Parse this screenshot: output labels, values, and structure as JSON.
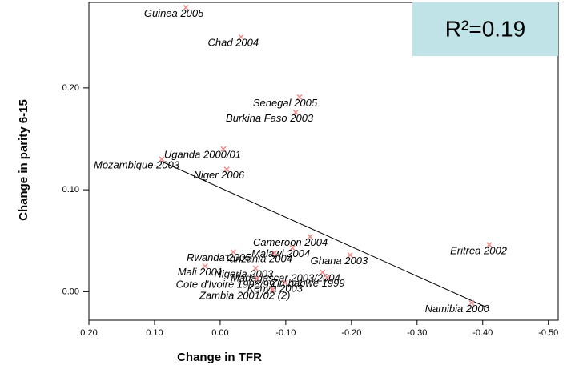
{
  "chart_data": {
    "type": "scatter",
    "xlabel": "Change in TFR",
    "ylabel": "Change in parity 6-15",
    "annotation": "R²=0.19",
    "annotation_color": "#bfe3e6",
    "color": "#f08c8c",
    "line_color": "#000000",
    "xlim": [
      0.2,
      -0.515
    ],
    "ylim": [
      -0.028,
      0.284
    ],
    "xticks": [
      {
        "value": 0.2,
        "label": "0.20"
      },
      {
        "value": 0.1,
        "label": "0.10"
      },
      {
        "value": 0,
        "label": "0.00"
      },
      {
        "value": -0.1,
        "label": "-0.10"
      },
      {
        "value": -0.2,
        "label": "-0.20"
      },
      {
        "value": -0.3,
        "label": "-0.30"
      },
      {
        "value": -0.4,
        "label": "-0.40"
      },
      {
        "value": -0.5,
        "label": "-0.50"
      }
    ],
    "yticks": [
      {
        "value": 0,
        "label": "0.00"
      },
      {
        "value": 0.1,
        "label": "0.10"
      },
      {
        "value": 0.2,
        "label": "0.20"
      }
    ],
    "labels": [
      "Guinea 2005",
      "Chad 2004",
      "Senegal 2005",
      "Burkina Faso 2003",
      "Uganda 2000/01",
      "Mozambique 2003",
      "Niger 2006",
      "Cameroon 2004",
      "Malawi 2004",
      "Tanzania 2004",
      "Rwanda 2005",
      "Ghana 2003",
      "Mali 2001",
      "Nigeria 2003",
      "Madagascar 2003/2004",
      "Cote d'Ivoire 1998/99",
      "Zimbabwe 1999",
      "Kenya 2003",
      "Zambia 2001/02 (2)",
      "Eritrea 2002",
      "Namibia 2000"
    ],
    "x": [
      0.052,
      -0.032,
      -0.121,
      -0.115,
      -0.005,
      0.089,
      -0.01,
      -0.137,
      -0.11,
      -0.083,
      -0.02,
      -0.198,
      0.023,
      -0.054,
      -0.156,
      -0.056,
      -0.163,
      -0.099,
      -0.08,
      -0.41,
      -0.383
    ],
    "y": [
      0.279,
      0.25,
      0.191,
      0.176,
      0.14,
      0.13,
      0.12,
      0.054,
      0.043,
      0.038,
      0.039,
      0.036,
      0.025,
      0.023,
      0.019,
      0.013,
      0.014,
      0.009,
      0.002,
      0.046,
      -0.011
    ],
    "fit_line": {
      "x": [
        0.09,
        -0.41
      ],
      "y": [
        0.128,
        -0.0165
      ]
    }
  }
}
